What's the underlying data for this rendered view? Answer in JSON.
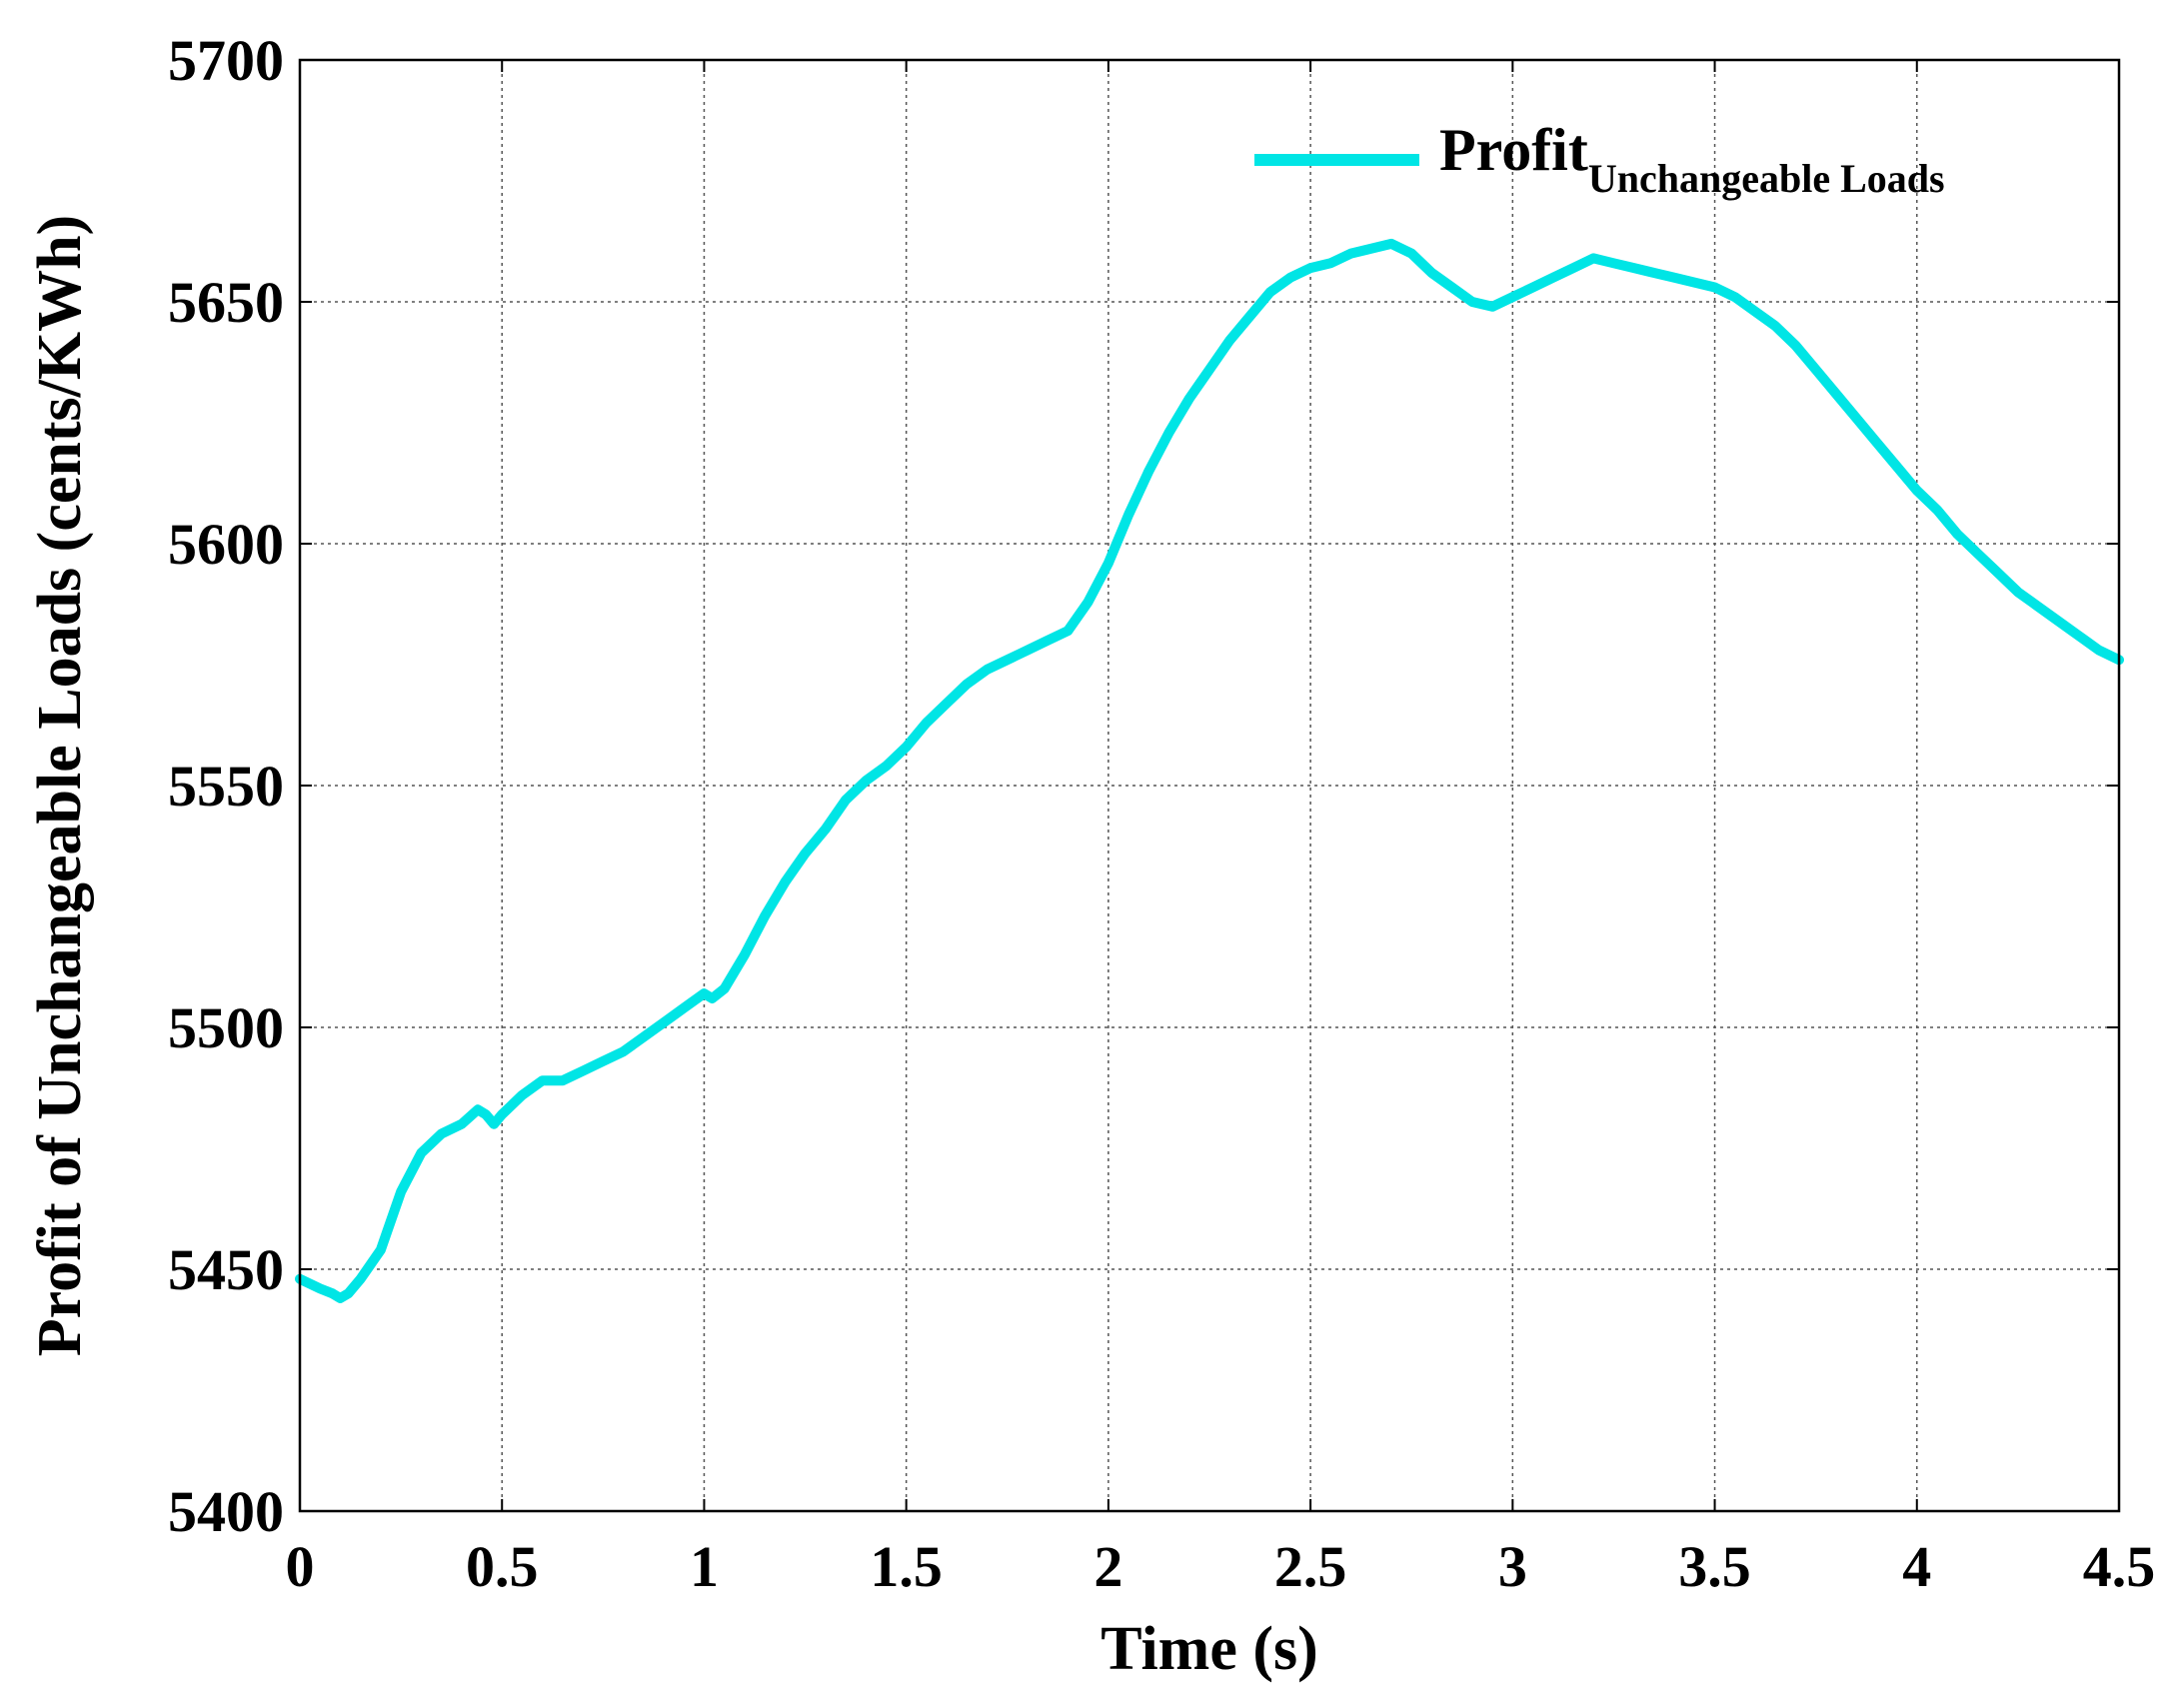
{
  "chart_data": {
    "type": "line",
    "title": "",
    "xlabel": "Time (s)",
    "ylabel": "Profit of Unchangeable Loads (cents/KWh)",
    "xlim": [
      0,
      4.5
    ],
    "ylim": [
      5400,
      5700
    ],
    "xticks": [
      0,
      0.5,
      1,
      1.5,
      2,
      2.5,
      3,
      3.5,
      4,
      4.5
    ],
    "xtick_labels": [
      "0",
      "0.5",
      "1",
      "1.5",
      "2",
      "2.5",
      "3",
      "3.5",
      "4",
      "4.5"
    ],
    "yticks": [
      5400,
      5450,
      5500,
      5550,
      5600,
      5650,
      5700
    ],
    "ytick_labels": [
      "5400",
      "5450",
      "5500",
      "5550",
      "5600",
      "5650",
      "5700"
    ],
    "grid": true,
    "legend_position": "top-right",
    "series": [
      {
        "name": "Profit",
        "name_subscript": "Unchangeable Loads",
        "color": "#00E5E5",
        "x": [
          0,
          0.05,
          0.08,
          0.1,
          0.12,
          0.15,
          0.2,
          0.25,
          0.3,
          0.35,
          0.4,
          0.44,
          0.46,
          0.48,
          0.5,
          0.55,
          0.6,
          0.65,
          0.7,
          0.75,
          0.8,
          0.85,
          0.9,
          0.95,
          1.0,
          1.02,
          1.05,
          1.1,
          1.15,
          1.2,
          1.25,
          1.3,
          1.35,
          1.4,
          1.45,
          1.5,
          1.55,
          1.6,
          1.65,
          1.7,
          1.75,
          1.8,
          1.85,
          1.9,
          1.95,
          2.0,
          2.05,
          2.1,
          2.15,
          2.2,
          2.25,
          2.3,
          2.35,
          2.4,
          2.45,
          2.5,
          2.55,
          2.6,
          2.65,
          2.7,
          2.75,
          2.8,
          2.85,
          2.9,
          2.95,
          3.0,
          3.05,
          3.1,
          3.15,
          3.2,
          3.25,
          3.3,
          3.35,
          3.4,
          3.45,
          3.5,
          3.55,
          3.6,
          3.65,
          3.7,
          3.75,
          3.8,
          3.85,
          3.9,
          3.95,
          4.0,
          4.05,
          4.1,
          4.15,
          4.2,
          4.25,
          4.3,
          4.35,
          4.4,
          4.45,
          4.5
        ],
        "y": [
          5448,
          5446,
          5445,
          5444,
          5445,
          5448,
          5454,
          5466,
          5474,
          5478,
          5480,
          5483,
          5482,
          5480,
          5482,
          5486,
          5489,
          5489,
          5491,
          5493,
          5495,
          5498,
          5501,
          5504,
          5507,
          5506,
          5508,
          5515,
          5523,
          5530,
          5536,
          5541,
          5547,
          5551,
          5554,
          5558,
          5563,
          5567,
          5571,
          5574,
          5576,
          5578,
          5580,
          5582,
          5588,
          5596,
          5606,
          5615,
          5623,
          5630,
          5636,
          5642,
          5647,
          5652,
          5655,
          5657,
          5658,
          5660,
          5661,
          5662,
          5660,
          5656,
          5653,
          5650,
          5649,
          5651,
          5653,
          5655,
          5657,
          5659,
          5658,
          5657,
          5656,
          5655,
          5654,
          5653,
          5651,
          5648,
          5645,
          5641,
          5636,
          5631,
          5626,
          5621,
          5616,
          5611,
          5607,
          5602,
          5598,
          5594,
          5590,
          5587,
          5584,
          5581,
          5578,
          5576
        ]
      }
    ]
  }
}
